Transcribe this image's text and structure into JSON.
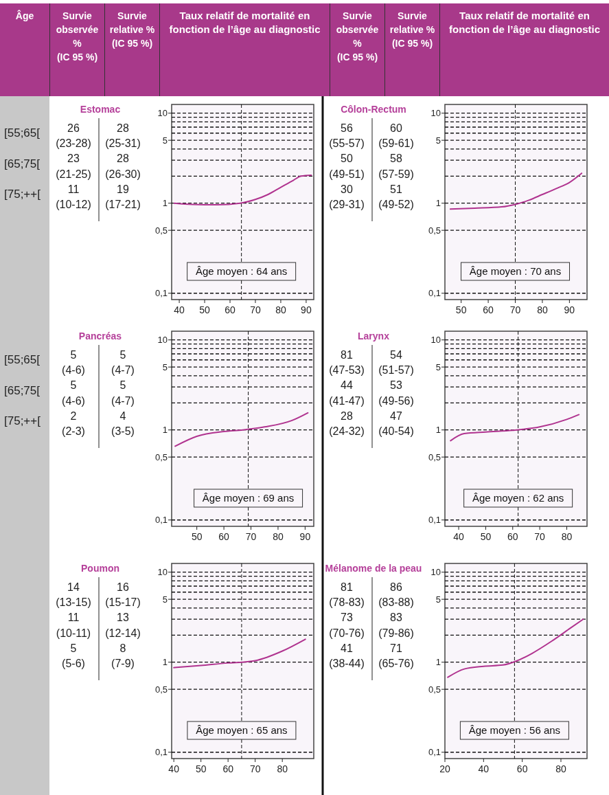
{
  "chart_data": [
    {
      "type": "other",
      "annotations": [
        "Âge",
        "Survie observée % (IC 95 %)",
        "Survie relative % (IC 95 %)",
        "Taux relatif de mortalité en fonction de l’âge au diagnostic",
        "Survie observée % (IC 95 %)",
        "Survie relative % (IC 95 %)",
        "Taux relatif de mortalité en fonction de l’âge au diagnostic"
      ]
    },
    {
      "type": "other",
      "annotations": [
        "[55;65[",
        "[65;75[",
        "[75;++[",
        "[55;65[",
        "[65;75[",
        "[75;++["
      ]
    },
    {
      "type": "line",
      "title": "Estomac",
      "annotations": [
        "26",
        "28",
        "(23-28)",
        "(25-31)",
        "23",
        "28",
        "(21-25)",
        "(26-30)",
        "11",
        "19",
        "(10-12)",
        "(17-21)"
      ],
      "x": [
        38,
        45,
        55,
        64,
        70,
        75,
        80,
        85,
        88,
        92
      ],
      "values": [
        1.0,
        0.97,
        0.96,
        1.0,
        1.1,
        1.25,
        1.5,
        1.8,
        2.0,
        2.05
      ],
      "color": "#b0338f",
      "xlim": [
        37,
        93
      ],
      "xticks": [
        40,
        50,
        60,
        70,
        80,
        90
      ],
      "ylim": [
        0.085,
        12.5
      ],
      "yticks": [
        {
          "value": 0.1,
          "label": "0,1"
        },
        {
          "value": 0.5,
          "label": "0,5"
        },
        1,
        {
          "value": 2,
          "label": null
        },
        {
          "value": 3,
          "label": null
        },
        {
          "value": 4,
          "label": null
        },
        5,
        {
          "value": 6,
          "label": null
        },
        {
          "value": 7,
          "label": null
        },
        {
          "value": 8,
          "label": null
        },
        {
          "value": 9,
          "label": null
        },
        10
      ],
      "log": true,
      "grid": "y",
      "ref_lines": [
        {
          "axis": "x",
          "value": 64.5,
          "label": "Âge moyen : 64 ans",
          "line_style": "dashed"
        }
      ]
    },
    {
      "type": "line",
      "title": "Côlon-Rectum",
      "annotations": [
        "56",
        "60",
        "(55-57)",
        "(59-61)",
        "50",
        "58",
        "(49-51)",
        "(57-59)",
        "30",
        "51",
        "(29-31)",
        "(49-52)"
      ],
      "x": [
        46,
        55,
        65,
        70,
        75,
        80,
        85,
        90,
        94.5
      ],
      "values": [
        0.86,
        0.88,
        0.91,
        0.97,
        1.08,
        1.25,
        1.45,
        1.7,
        2.15
      ],
      "color": "#b0338f",
      "xlim": [
        44,
        96.5
      ],
      "xticks": [
        50,
        60,
        70,
        80,
        90
      ],
      "ylim": [
        0.085,
        12.5
      ],
      "yticks": [
        {
          "value": 0.1,
          "label": "0,1"
        },
        {
          "value": 0.5,
          "label": "0,5"
        },
        1,
        {
          "value": 2,
          "label": null
        },
        {
          "value": 3,
          "label": null
        },
        {
          "value": 4,
          "label": null
        },
        5,
        {
          "value": 6,
          "label": null
        },
        {
          "value": 7,
          "label": null
        },
        {
          "value": 8,
          "label": null
        },
        {
          "value": 9,
          "label": null
        },
        10
      ],
      "log": true,
      "grid": "y",
      "ref_lines": [
        {
          "axis": "x",
          "value": 70,
          "label": "Âge moyen : 70 ans",
          "line_style": "dashed"
        }
      ]
    },
    {
      "type": "line",
      "title": "Pancréas",
      "annotations": [
        "5",
        "5",
        "(4-6)",
        "(4-7)",
        "5",
        "5",
        "(4-6)",
        "(4-7)",
        "2",
        "4",
        "(2-3)",
        "(3-5)"
      ],
      "x": [
        42,
        50,
        60,
        67,
        75,
        85,
        91
      ],
      "values": [
        0.66,
        0.85,
        0.96,
        1.0,
        1.08,
        1.27,
        1.55
      ],
      "color": "#b0338f",
      "xlim": [
        40.7,
        93.2
      ],
      "xticks": [
        50,
        60,
        70,
        80,
        90
      ],
      "ylim": [
        0.085,
        12.5
      ],
      "yticks": [
        {
          "value": 0.1,
          "label": "0,1"
        },
        {
          "value": 0.5,
          "label": "0,5"
        },
        1,
        {
          "value": 2,
          "label": null
        },
        {
          "value": 3,
          "label": null
        },
        {
          "value": 4,
          "label": null
        },
        5,
        {
          "value": 6,
          "label": null
        },
        {
          "value": 7,
          "label": null
        },
        {
          "value": 8,
          "label": null
        },
        {
          "value": 9,
          "label": null
        },
        10
      ],
      "log": true,
      "grid": "y",
      "ref_lines": [
        {
          "axis": "x",
          "value": 69,
          "label": "Âge moyen : 69 ans",
          "line_style": "dashed"
        }
      ]
    },
    {
      "type": "line",
      "title": "Larynx",
      "annotations": [
        "81",
        "54",
        "(47-53)",
        "(51-57)",
        "44",
        "53",
        "(41-47)",
        "(49-56)",
        "28",
        "47",
        "(24-32)",
        "(40-54)"
      ],
      "x": [
        37,
        42,
        50,
        60,
        70,
        80,
        84.5
      ],
      "values": [
        0.76,
        0.91,
        0.95,
        0.99,
        1.08,
        1.31,
        1.48
      ],
      "color": "#b0338f",
      "xlim": [
        34.9,
        87.5
      ],
      "xticks": [
        40,
        50,
        60,
        70,
        80
      ],
      "ylim": [
        0.085,
        12.5
      ],
      "yticks": [
        {
          "value": 0.1,
          "label": "0,1"
        },
        {
          "value": 0.5,
          "label": "0,5"
        },
        1,
        {
          "value": 2,
          "label": null
        },
        {
          "value": 3,
          "label": null
        },
        {
          "value": 4,
          "label": null
        },
        5,
        {
          "value": 6,
          "label": null
        },
        {
          "value": 7,
          "label": null
        },
        {
          "value": 8,
          "label": null
        },
        {
          "value": 9,
          "label": null
        },
        10
      ],
      "log": true,
      "grid": "y",
      "ref_lines": [
        {
          "axis": "x",
          "value": 62,
          "label": "Âge moyen : 62 ans",
          "line_style": "dashed"
        }
      ]
    },
    {
      "type": "line",
      "title": "Poumon",
      "annotations": [
        "14",
        "16",
        "(13-15)",
        "(15-17)",
        "11",
        "13",
        "(10-11)",
        "(12-14)",
        "5",
        "8",
        "(5-6)",
        "(7-9)"
      ],
      "x": [
        40,
        50,
        60,
        65,
        70,
        80,
        88.5
      ],
      "values": [
        0.87,
        0.92,
        0.98,
        1.0,
        1.04,
        1.33,
        1.8
      ],
      "color": "#b0338f",
      "xlim": [
        39.2,
        91.6
      ],
      "xticks": [
        40,
        50,
        60,
        70,
        80
      ],
      "ylim": [
        0.085,
        12.5
      ],
      "yticks": [
        {
          "value": 0.1,
          "label": "0,1"
        },
        {
          "value": 0.5,
          "label": "0,5"
        },
        1,
        {
          "value": 2,
          "label": null
        },
        {
          "value": 3,
          "label": null
        },
        {
          "value": 4,
          "label": null
        },
        5,
        {
          "value": 6,
          "label": null
        },
        {
          "value": 7,
          "label": null
        },
        {
          "value": 8,
          "label": null
        },
        {
          "value": 9,
          "label": null
        },
        10
      ],
      "log": true,
      "grid": "y",
      "ref_lines": [
        {
          "axis": "x",
          "value": 65,
          "label": "Âge moyen : 65 ans",
          "line_style": "dashed"
        }
      ]
    },
    {
      "type": "line",
      "title": "Mélanome de la peau",
      "annotations": [
        "81",
        "86",
        "(78-83)",
        "(83-88)",
        "73",
        "83",
        "(70-76)",
        "(79-86)",
        "41",
        "71",
        "(38-44)",
        "(65-76)"
      ],
      "x": [
        21.5,
        30,
        40,
        50,
        57,
        65,
        75,
        85,
        91.5
      ],
      "values": [
        0.68,
        0.84,
        0.9,
        0.93,
        1.03,
        1.25,
        1.7,
        2.4,
        3.0
      ],
      "color": "#b0338f",
      "xlim": [
        20,
        93.5
      ],
      "xticks": [
        20,
        40,
        60,
        80
      ],
      "ylim": [
        0.085,
        12.5
      ],
      "yticks": [
        {
          "value": 0.1,
          "label": "0,1"
        },
        {
          "value": 0.5,
          "label": "0,5"
        },
        1,
        {
          "value": 2,
          "label": null
        },
        {
          "value": 3,
          "label": null
        },
        {
          "value": 4,
          "label": null
        },
        5,
        {
          "value": 6,
          "label": null
        },
        {
          "value": 7,
          "label": null
        },
        {
          "value": 8,
          "label": null
        },
        {
          "value": 9,
          "label": null
        },
        10
      ],
      "log": true,
      "grid": "y",
      "ref_lines": [
        {
          "axis": "x",
          "value": 56,
          "label": "Âge moyen : 56 ans",
          "line_style": "dashed"
        }
      ]
    }
  ]
}
